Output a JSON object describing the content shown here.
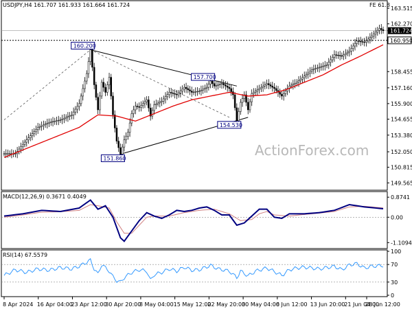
{
  "chart_data": [
    {
      "type": "candlestick",
      "title": "USDJPY,H4  161.707 161.933 161.664 161.724",
      "corner_label": "FE 61.8",
      "watermark": "ActionForex.com",
      "ylim": [
        149.2,
        163.9
      ],
      "y_ticks": [
        "163.515",
        "162.270",
        "161.724",
        "160.950",
        "158.455",
        "157.160",
        "155.900",
        "154.655",
        "153.380",
        "152.050",
        "150.815",
        "149.565"
      ],
      "x_ticks": [
        "8 Apr 2024",
        "16 Apr 04:00",
        "23 Apr 12:00",
        "30 Apr 20:00",
        "8 May 04:00",
        "15 May 12:00",
        "22 May 20:00",
        "30 May 04:00",
        "6 Jun 12:00",
        "13 Jun 20:00",
        "21 Jun 04:00",
        "28 Jun 12:00"
      ],
      "current_price": 161.724,
      "reference_level": 160.95,
      "price_waypoints": [
        [
          0,
          151.9
        ],
        [
          3,
          151.9
        ],
        [
          6,
          153.0
        ],
        [
          9,
          154.0
        ],
        [
          12,
          154.4
        ],
        [
          15,
          154.6
        ],
        [
          18,
          155.0
        ],
        [
          20,
          155.9
        ],
        [
          22,
          158.3
        ],
        [
          23,
          160.2
        ],
        [
          24,
          157.4
        ],
        [
          25,
          155.4
        ],
        [
          26,
          157.6
        ],
        [
          27,
          156.8
        ],
        [
          28,
          158.0
        ],
        [
          29,
          155.0
        ],
        [
          30,
          152.9
        ],
        [
          31,
          151.86
        ],
        [
          32,
          153.0
        ],
        [
          33,
          153.6
        ],
        [
          34,
          155.1
        ],
        [
          35,
          155.7
        ],
        [
          36,
          155.6
        ],
        [
          37,
          155.9
        ],
        [
          38,
          156.2
        ],
        [
          39,
          154.9
        ],
        [
          40,
          155.8
        ],
        [
          42,
          156.1
        ],
        [
          44,
          156.8
        ],
        [
          46,
          156.6
        ],
        [
          48,
          157.2
        ],
        [
          50,
          156.8
        ],
        [
          52,
          156.9
        ],
        [
          54,
          157.2
        ],
        [
          55,
          157.7
        ],
        [
          56,
          157.3
        ],
        [
          58,
          157.5
        ],
        [
          60,
          157.1
        ],
        [
          61,
          156.6
        ],
        [
          62,
          154.53
        ],
        [
          63,
          156.0
        ],
        [
          64,
          156.6
        ],
        [
          65,
          155.4
        ],
        [
          66,
          156.7
        ],
        [
          68,
          157.1
        ],
        [
          70,
          157.5
        ],
        [
          72,
          157.1
        ],
        [
          74,
          156.5
        ],
        [
          76,
          157.3
        ],
        [
          78,
          157.6
        ],
        [
          80,
          158.1
        ],
        [
          82,
          158.6
        ],
        [
          84,
          158.8
        ],
        [
          86,
          159.0
        ],
        [
          88,
          159.8
        ],
        [
          90,
          159.7
        ],
        [
          92,
          160.1
        ],
        [
          94,
          160.9
        ],
        [
          96,
          160.8
        ],
        [
          98,
          161.3
        ],
        [
          100,
          161.9
        ],
        [
          101,
          161.72
        ]
      ],
      "moving_average": [
        [
          0,
          151.6
        ],
        [
          10,
          152.8
        ],
        [
          20,
          154.0
        ],
        [
          25,
          155.0
        ],
        [
          30,
          154.9
        ],
        [
          35,
          154.5
        ],
        [
          40,
          155.1
        ],
        [
          45,
          155.7
        ],
        [
          50,
          156.2
        ],
        [
          55,
          156.5
        ],
        [
          60,
          156.8
        ],
        [
          65,
          156.5
        ],
        [
          70,
          156.6
        ],
        [
          75,
          157.0
        ],
        [
          80,
          157.6
        ],
        [
          85,
          158.2
        ],
        [
          90,
          159.0
        ],
        [
          95,
          159.7
        ],
        [
          101,
          160.6
        ]
      ],
      "annotations": [
        {
          "label": "160.200",
          "x": 23,
          "y": 160.2
        },
        {
          "label": "157.700",
          "x": 55,
          "y": 157.7
        },
        {
          "label": "154.530",
          "x": 62,
          "y": 154.53
        },
        {
          "label": "151.860",
          "x": 31,
          "y": 151.86
        }
      ],
      "triangle_upper": [
        [
          23,
          160.2
        ],
        [
          62,
          157.3
        ]
      ],
      "triangle_lower": [
        [
          31,
          151.86
        ],
        [
          65,
          154.8
        ]
      ],
      "dotted_projection": [
        [
          0,
          154.6
        ],
        [
          23,
          160.2
        ],
        [
          60,
          154.8
        ]
      ]
    },
    {
      "type": "line",
      "title": "MACD(12,26,9) 0.3671 0.4049",
      "ylim": [
        -1.25,
        1.0
      ],
      "y_ticks": [
        "0.8741",
        "0.00",
        "-1.1094"
      ],
      "series": [
        {
          "values": [
            [
              0,
              0.05
            ],
            [
              5,
              0.15
            ],
            [
              10,
              0.3
            ],
            [
              15,
              0.25
            ],
            [
              20,
              0.4
            ],
            [
              23,
              0.75
            ],
            [
              25,
              0.35
            ],
            [
              27,
              0.5
            ],
            [
              29,
              0.0
            ],
            [
              31,
              -0.9
            ],
            [
              32,
              -1.05
            ],
            [
              34,
              -0.6
            ],
            [
              36,
              -0.15
            ],
            [
              38,
              0.2
            ],
            [
              40,
              0.05
            ],
            [
              42,
              -0.05
            ],
            [
              44,
              0.1
            ],
            [
              46,
              0.3
            ],
            [
              48,
              0.25
            ],
            [
              50,
              0.3
            ],
            [
              52,
              0.4
            ],
            [
              54,
              0.45
            ],
            [
              56,
              0.3
            ],
            [
              58,
              0.1
            ],
            [
              60,
              0.1
            ],
            [
              62,
              -0.35
            ],
            [
              64,
              -0.25
            ],
            [
              66,
              0.05
            ],
            [
              68,
              0.35
            ],
            [
              70,
              0.35
            ],
            [
              72,
              0.0
            ],
            [
              74,
              -0.05
            ],
            [
              76,
              0.15
            ],
            [
              80,
              0.15
            ],
            [
              84,
              0.2
            ],
            [
              88,
              0.3
            ],
            [
              92,
              0.55
            ],
            [
              96,
              0.45
            ],
            [
              101,
              0.37
            ]
          ]
        },
        {
          "values": [
            [
              0,
              0.0
            ],
            [
              5,
              0.1
            ],
            [
              10,
              0.22
            ],
            [
              15,
              0.24
            ],
            [
              20,
              0.3
            ],
            [
              23,
              0.55
            ],
            [
              25,
              0.5
            ],
            [
              28,
              0.4
            ],
            [
              30,
              -0.2
            ],
            [
              32,
              -0.7
            ],
            [
              34,
              -0.7
            ],
            [
              36,
              -0.35
            ],
            [
              38,
              0.0
            ],
            [
              40,
              0.05
            ],
            [
              44,
              0.05
            ],
            [
              48,
              0.2
            ],
            [
              52,
              0.3
            ],
            [
              56,
              0.35
            ],
            [
              60,
              0.15
            ],
            [
              63,
              -0.15
            ],
            [
              66,
              -0.1
            ],
            [
              68,
              0.15
            ],
            [
              70,
              0.25
            ],
            [
              72,
              0.1
            ],
            [
              76,
              0.05
            ],
            [
              80,
              0.12
            ],
            [
              84,
              0.18
            ],
            [
              88,
              0.25
            ],
            [
              92,
              0.45
            ],
            [
              96,
              0.48
            ],
            [
              101,
              0.405
            ]
          ]
        }
      ]
    },
    {
      "type": "line",
      "title": "RSI(14) 67.5579",
      "ylim": [
        0,
        100
      ],
      "y_ticks": [
        "100",
        "70",
        "30",
        "0"
      ],
      "series": [
        {
          "values": [
            [
              0,
              45
            ],
            [
              3,
              58
            ],
            [
              6,
              52
            ],
            [
              9,
              60
            ],
            [
              12,
              57
            ],
            [
              15,
              63
            ],
            [
              18,
              60
            ],
            [
              20,
              66
            ],
            [
              22,
              75
            ],
            [
              23,
              80
            ],
            [
              24,
              60
            ],
            [
              25,
              48
            ],
            [
              26,
              70
            ],
            [
              28,
              55
            ],
            [
              29,
              42
            ],
            [
              30,
              33
            ],
            [
              31,
              30
            ],
            [
              32,
              40
            ],
            [
              34,
              52
            ],
            [
              36,
              58
            ],
            [
              38,
              55
            ],
            [
              39,
              34
            ],
            [
              40,
              47
            ],
            [
              42,
              52
            ],
            [
              44,
              60
            ],
            [
              46,
              55
            ],
            [
              48,
              64
            ],
            [
              50,
              57
            ],
            [
              52,
              58
            ],
            [
              55,
              68
            ],
            [
              57,
              60
            ],
            [
              60,
              55
            ],
            [
              62,
              40
            ],
            [
              63,
              55
            ],
            [
              65,
              44
            ],
            [
              67,
              55
            ],
            [
              70,
              62
            ],
            [
              72,
              54
            ],
            [
              74,
              45
            ],
            [
              76,
              58
            ],
            [
              78,
              62
            ],
            [
              80,
              64
            ],
            [
              84,
              60
            ],
            [
              88,
              66
            ],
            [
              90,
              58
            ],
            [
              92,
              69
            ],
            [
              94,
              72
            ],
            [
              96,
              62
            ],
            [
              98,
              66
            ],
            [
              101,
              67.6
            ]
          ]
        }
      ]
    }
  ]
}
